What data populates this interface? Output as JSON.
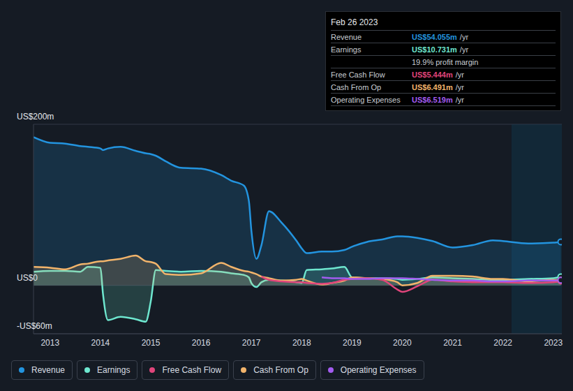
{
  "chart_data": {
    "type": "area",
    "x": [
      2012.67,
      2013,
      2013.3,
      2013.6,
      2013.75,
      2014,
      2014.05,
      2014.15,
      2014.4,
      2014.7,
      2014.9,
      2015,
      2015.1,
      2015.3,
      2015.6,
      2016,
      2016.4,
      2016.6,
      2016.85,
      2016.95,
      2017,
      2017.1,
      2017.2,
      2017.35,
      2017.6,
      2017.9,
      2018,
      2018.1,
      2018.4,
      2018.6,
      2018.85,
      2019,
      2019.3,
      2019.6,
      2019.9,
      2020,
      2020.3,
      2020.6,
      2021,
      2021.4,
      2021.8,
      2022,
      2022.5,
      2023,
      2023.15
    ],
    "xlim": [
      2012.67,
      2023.17
    ],
    "xticks": [
      2013,
      2014,
      2015,
      2016,
      2017,
      2018,
      2019,
      2020,
      2021,
      2022,
      2023
    ],
    "ylim": [
      -60,
      200
    ],
    "yticks": [
      {
        "value": -60,
        "label": "-US$60m"
      },
      {
        "value": 0,
        "label": "US$0"
      },
      {
        "value": 200,
        "label": "US$200m"
      }
    ],
    "grid": true,
    "legend": "bottom",
    "series": [
      {
        "name": "Revenue",
        "type": "area",
        "color": "#2394df",
        "values": [
          184,
          177,
          176,
          173,
          172,
          170,
          168,
          170,
          172,
          167,
          164,
          163,
          161,
          154,
          146,
          145,
          137,
          130,
          124,
          105,
          68,
          33,
          50,
          92,
          78,
          55,
          46,
          40,
          42,
          42,
          44,
          48,
          54,
          57,
          61,
          61,
          59,
          55,
          47,
          50,
          56,
          55,
          52,
          53,
          54.055
        ]
      },
      {
        "name": "Earnings",
        "type": "area",
        "color": "#6ee7cf",
        "values": [
          17,
          18,
          18,
          17,
          23,
          22,
          -10,
          -43,
          -39,
          -42,
          -45,
          -20,
          19,
          18,
          17,
          18,
          17,
          15,
          13,
          10,
          3,
          -2,
          4,
          7,
          6,
          4,
          3,
          19,
          20,
          21,
          23,
          10,
          9,
          9,
          8,
          7,
          8,
          10,
          9,
          8,
          7,
          7,
          8,
          9,
          10.731
        ]
      },
      {
        "name": "Free Cash Flow",
        "type": "line",
        "color": "#e0457b",
        "values": [
          null,
          null,
          null,
          null,
          null,
          null,
          null,
          null,
          null,
          null,
          null,
          null,
          null,
          null,
          null,
          null,
          null,
          null,
          null,
          null,
          null,
          null,
          11,
          7,
          5,
          4,
          4,
          3,
          2,
          3,
          7,
          8,
          9,
          7,
          -5,
          -8,
          -1,
          7,
          5,
          4,
          4,
          4,
          3,
          4,
          5.444
        ]
      },
      {
        "name": "Cash From Op",
        "type": "area",
        "color": "#f2b46b",
        "values": [
          23,
          22,
          20,
          26,
          27,
          30,
          30,
          31,
          33,
          37,
          30,
          29,
          27,
          14,
          13,
          15,
          28,
          23,
          18,
          17,
          16,
          14,
          11,
          9,
          6,
          7,
          8,
          6,
          1,
          3,
          6,
          10,
          9,
          8,
          4,
          0,
          3,
          12,
          12,
          11,
          8,
          8,
          5,
          7,
          6.491
        ]
      },
      {
        "name": "Operating Expenses",
        "type": "line",
        "color": "#a35cf0",
        "values": [
          null,
          null,
          null,
          null,
          null,
          null,
          null,
          null,
          null,
          null,
          null,
          null,
          null,
          null,
          null,
          null,
          null,
          null,
          null,
          null,
          null,
          null,
          null,
          null,
          null,
          null,
          null,
          null,
          10,
          9,
          9,
          8,
          8,
          9,
          9,
          9,
          8,
          7,
          6,
          6,
          5,
          5,
          6,
          6,
          6.519
        ]
      }
    ],
    "annotations": {
      "highlight_x": [
        2022.17,
        2023.17
      ],
      "date": "Feb 26 2023",
      "rows": [
        {
          "label": "Revenue",
          "value": "US$54.055m",
          "unit": "/yr"
        },
        {
          "label": "Earnings",
          "value": "US$10.731m",
          "unit": "/yr"
        },
        {
          "value": "19.9% profit margin"
        },
        {
          "label": "Free Cash Flow",
          "value": "US$5.444m",
          "unit": "/yr"
        },
        {
          "label": "Cash From Op",
          "value": "US$6.491m",
          "unit": "/yr"
        },
        {
          "label": "Operating Expenses",
          "value": "US$6.519m",
          "unit": "/yr"
        }
      ]
    }
  }
}
